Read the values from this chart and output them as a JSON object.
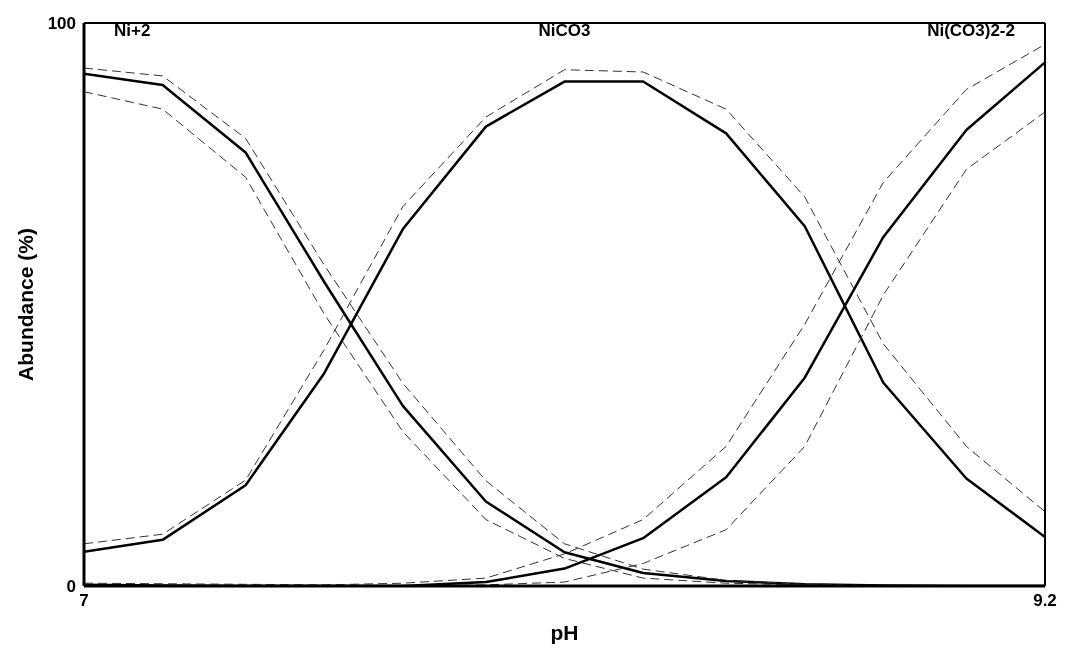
{
  "chart_data": {
    "type": "line",
    "xlabel": "pH",
    "ylabel": "Abundance (%)",
    "x": [
      7,
      7.18,
      7.37,
      7.55,
      7.73,
      7.92,
      8.1,
      8.28,
      8.47,
      8.65,
      8.83,
      9.02,
      9.2
    ],
    "xlim": [
      7,
      9.2
    ],
    "xticks": [
      7,
      9.2
    ],
    "ylim": [
      0,
      100
    ],
    "yticks": [
      0,
      100
    ],
    "marker": "none",
    "series": [
      {
        "name": "Ni+2",
        "color": "#000000",
        "line_style": "solid",
        "values": [
          91,
          89,
          77,
          54,
          32,
          15,
          6,
          2.3,
          0.9,
          0.3,
          0.1,
          0,
          0
        ]
      },
      {
        "color": "#333333",
        "line_style": "dashed",
        "values": [
          92,
          90.6,
          79.5,
          57,
          36,
          18.7,
          7.5,
          3,
          1,
          0.3,
          0.1,
          0,
          0
        ]
      },
      {
        "color": "#333333",
        "line_style": "dashed",
        "values": [
          87.8,
          84.7,
          72.6,
          48.3,
          27.4,
          11.8,
          4.9,
          1.4,
          0.5,
          0.2,
          0,
          0,
          0
        ]
      },
      {
        "name": "NiCO3",
        "color": "#000000",
        "line_style": "solid",
        "values": [
          6.1,
          8.2,
          17.9,
          37.8,
          63.4,
          81.6,
          89.6,
          89.6,
          80.4,
          63.9,
          36.1,
          19.1,
          8.7
        ]
      },
      {
        "color": "#333333",
        "line_style": "dashed",
        "values": [
          7.5,
          9.2,
          18.8,
          42,
          67.4,
          83.3,
          91.7,
          91.3,
          84.7,
          69.1,
          43,
          24.8,
          13.2
        ]
      },
      {
        "name": "Ni(CO3)2-2",
        "color": "#000000",
        "line_style": "solid",
        "values": [
          0.2,
          0.1,
          0,
          0,
          0,
          0.7,
          3.1,
          8.5,
          19.3,
          37,
          62,
          81,
          93
        ]
      },
      {
        "color": "#333333",
        "line_style": "dashed",
        "values": [
          0.5,
          0.4,
          0.3,
          0.2,
          0.5,
          1.4,
          5.7,
          11.8,
          24.8,
          46.5,
          71.7,
          88.2,
          96.2
        ]
      },
      {
        "color": "#333333",
        "line_style": "dashed",
        "values": [
          0.1,
          0.1,
          0,
          0,
          0,
          0.2,
          0.7,
          4,
          10,
          24.8,
          51.7,
          74,
          84.2
        ]
      }
    ]
  }
}
